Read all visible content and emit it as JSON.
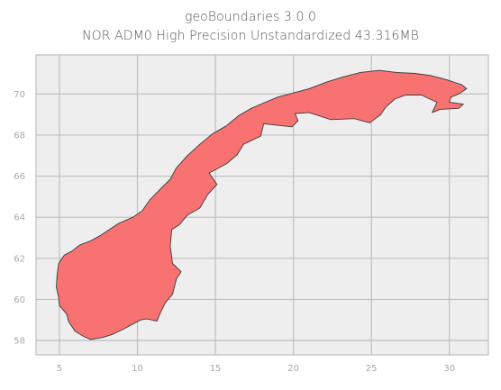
{
  "title": {
    "line1": "geoBoundaries 3.0.0",
    "line2": "NOR ADM0 High Precision Unstandardized 43.316MB"
  },
  "colors": {
    "plot_background": "#EEEEEE",
    "grid": "#BFBFBF",
    "frame": "#BFBFBF",
    "land_fill": "#F87272",
    "land_edge": "#3A3A3A",
    "tick_text": "#A8A8A8",
    "title_text": "#555555"
  },
  "chart_data": {
    "type": "map",
    "region": "NOR ADM0",
    "xlim": [
      3.5,
      32.5
    ],
    "ylim": [
      57.3,
      71.9
    ],
    "grid": true,
    "x_ticks": [
      5,
      10,
      15,
      20,
      25,
      30
    ],
    "y_ticks": [
      58,
      60,
      62,
      64,
      66,
      68,
      70
    ],
    "x_tick_labels": [
      "5",
      "10",
      "15",
      "20",
      "25",
      "30"
    ],
    "y_tick_labels": [
      "58",
      "60",
      "62",
      "64",
      "66",
      "68",
      "70"
    ],
    "outline_lonlat": [
      [
        7.0,
        58.05
      ],
      [
        6.55,
        58.2
      ],
      [
        6.0,
        58.45
      ],
      [
        5.6,
        58.9
      ],
      [
        5.45,
        59.3
      ],
      [
        5.0,
        59.7
      ],
      [
        4.95,
        60.1
      ],
      [
        4.8,
        60.6
      ],
      [
        4.85,
        61.2
      ],
      [
        4.95,
        61.75
      ],
      [
        5.3,
        62.15
      ],
      [
        5.8,
        62.35
      ],
      [
        6.3,
        62.65
      ],
      [
        7.0,
        62.85
      ],
      [
        7.6,
        63.1
      ],
      [
        8.2,
        63.4
      ],
      [
        8.8,
        63.7
      ],
      [
        9.7,
        64.0
      ],
      [
        10.3,
        64.3
      ],
      [
        10.8,
        64.85
      ],
      [
        11.5,
        65.4
      ],
      [
        12.1,
        65.85
      ],
      [
        12.5,
        66.4
      ],
      [
        13.2,
        67.0
      ],
      [
        14.0,
        67.55
      ],
      [
        14.8,
        68.05
      ],
      [
        15.7,
        68.45
      ],
      [
        16.5,
        68.95
      ],
      [
        17.3,
        69.3
      ],
      [
        18.2,
        69.6
      ],
      [
        19.0,
        69.85
      ],
      [
        20.0,
        70.05
      ],
      [
        21.0,
        70.25
      ],
      [
        22.2,
        70.6
      ],
      [
        23.3,
        70.85
      ],
      [
        24.3,
        71.05
      ],
      [
        25.5,
        71.15
      ],
      [
        26.6,
        71.05
      ],
      [
        27.8,
        71.0
      ],
      [
        28.8,
        70.9
      ],
      [
        29.8,
        70.7
      ],
      [
        30.8,
        70.45
      ],
      [
        31.1,
        70.25
      ],
      [
        30.6,
        70.0
      ],
      [
        30.1,
        69.85
      ],
      [
        30.0,
        69.6
      ],
      [
        30.9,
        69.5
      ],
      [
        30.6,
        69.3
      ],
      [
        29.4,
        69.25
      ],
      [
        28.9,
        69.1
      ],
      [
        29.2,
        69.6
      ],
      [
        28.2,
        69.95
      ],
      [
        27.2,
        69.95
      ],
      [
        26.5,
        69.75
      ],
      [
        25.9,
        69.35
      ],
      [
        25.6,
        69.0
      ],
      [
        24.9,
        68.6
      ],
      [
        23.9,
        68.8
      ],
      [
        22.4,
        68.75
      ],
      [
        21.0,
        69.1
      ],
      [
        20.1,
        69.05
      ],
      [
        20.3,
        68.7
      ],
      [
        19.9,
        68.4
      ],
      [
        18.1,
        68.55
      ],
      [
        17.9,
        67.95
      ],
      [
        16.8,
        67.55
      ],
      [
        16.4,
        67.05
      ],
      [
        15.7,
        66.6
      ],
      [
        14.6,
        66.15
      ],
      [
        15.1,
        65.6
      ],
      [
        14.5,
        65.1
      ],
      [
        14.0,
        64.45
      ],
      [
        13.2,
        64.1
      ],
      [
        12.7,
        63.65
      ],
      [
        12.2,
        63.4
      ],
      [
        12.1,
        62.6
      ],
      [
        12.25,
        61.75
      ],
      [
        12.8,
        61.35
      ],
      [
        12.5,
        61.0
      ],
      [
        12.25,
        60.25
      ],
      [
        11.8,
        59.85
      ],
      [
        11.5,
        59.4
      ],
      [
        11.25,
        58.95
      ],
      [
        10.6,
        59.05
      ],
      [
        10.2,
        59.0
      ],
      [
        9.7,
        58.8
      ],
      [
        9.1,
        58.55
      ],
      [
        8.4,
        58.3
      ],
      [
        7.8,
        58.15
      ],
      [
        7.0,
        58.05
      ]
    ]
  }
}
